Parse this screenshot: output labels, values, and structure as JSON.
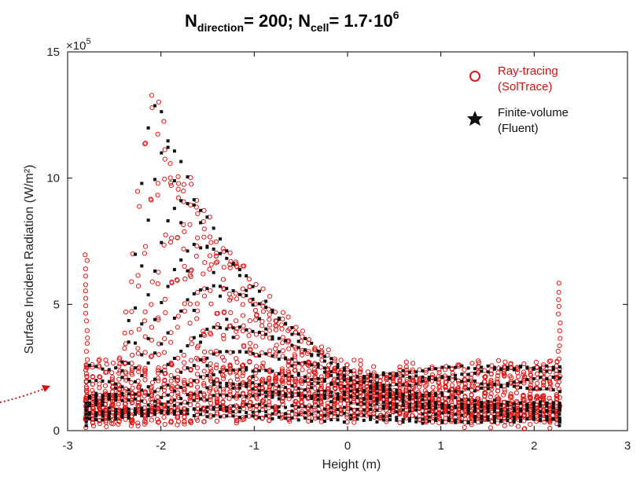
{
  "chart_data": {
    "type": "scatter",
    "title": {
      "n_direction_label": "N",
      "n_direction_sub": "direction",
      "n_direction_value": "= 200; ",
      "n_cell_label": "N",
      "n_cell_sub": "cell",
      "n_cell_value": "= 1.7·10",
      "n_cell_exp": "6"
    },
    "xlabel": "Height (m)",
    "ylabel": "Surface Incident Radiation (W/m²)",
    "y_multiplier": "×10",
    "y_multiplier_exp": "5",
    "xlim": [
      -3,
      3
    ],
    "ylim": [
      0,
      15
    ],
    "x_ticks": [
      -3,
      -2,
      -1,
      0,
      1,
      2,
      3
    ],
    "x_tick_labels": [
      "-3",
      "-2",
      "-1",
      "0",
      "1",
      "2",
      "3"
    ],
    "y_ticks": [
      0,
      5,
      10,
      15
    ],
    "y_tick_labels": [
      "0",
      "5",
      "10",
      "15"
    ],
    "x_range_data": [
      -2.8,
      2.27
    ],
    "legend_position": "top-right",
    "grid": false,
    "series": [
      {
        "name": "Ray-tracing (SolTrace)",
        "legend_line1": "Ray-tracing",
        "legend_line2": "(SolTrace)",
        "marker": "open-circle",
        "color": "#e01818",
        "curve_peaks": [
          14.2,
          12.0,
          9.8,
          8.0,
          6.2,
          4.6,
          3.6,
          2.9,
          2.3,
          1.8,
          1.3,
          0.9
        ]
      },
      {
        "name": "Finite-volume (Fluent)",
        "legend_line1": "Finite-volume",
        "legend_line2": "(Fluent)",
        "marker": "filled-square",
        "color": "#111111",
        "curve_peaks": [
          14.5,
          12.8,
          10.6,
          8.6,
          6.8,
          5.0,
          3.9,
          3.1,
          2.5,
          2.0,
          1.5,
          1.0,
          0.6
        ]
      }
    ]
  },
  "annotation": {
    "arrow_color": "#d01818"
  }
}
